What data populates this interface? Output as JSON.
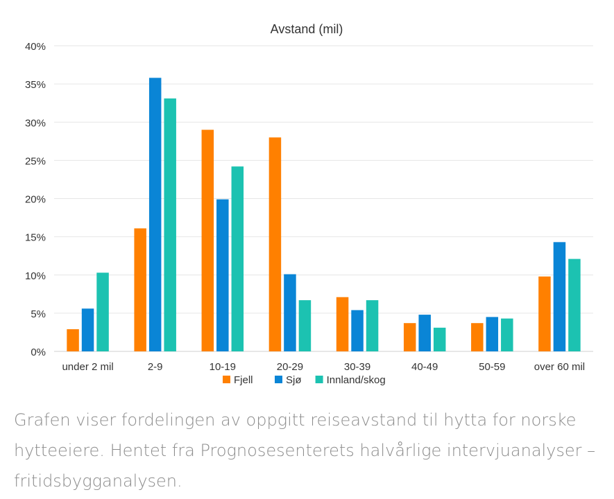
{
  "chart_data": {
    "type": "bar",
    "title": "Avstand (mil)",
    "xlabel": "",
    "ylabel": "",
    "categories": [
      "under 2 mil",
      "2-9",
      "10-19",
      "20-29",
      "30-39",
      "40-49",
      "50-59",
      "over 60 mil"
    ],
    "series": [
      {
        "name": "Fjell",
        "color": "#ff8000",
        "values": [
          0.029,
          0.161,
          0.29,
          0.28,
          0.071,
          0.037,
          0.037,
          0.098
        ]
      },
      {
        "name": "Sjø",
        "color": "#0a85d6",
        "values": [
          0.056,
          0.358,
          0.199,
          0.101,
          0.054,
          0.048,
          0.045,
          0.143
        ]
      },
      {
        "name": "Innland/skog",
        "color": "#1cc2b1",
        "values": [
          0.103,
          0.331,
          0.242,
          0.067,
          0.067,
          0.031,
          0.043,
          0.121
        ]
      }
    ],
    "ylim": [
      0,
      0.4
    ],
    "yticks": [
      0,
      0.05,
      0.1,
      0.15,
      0.2,
      0.25,
      0.3,
      0.35,
      0.4
    ],
    "ytick_labels": [
      "0%",
      "5%",
      "10%",
      "15%",
      "20%",
      "25%",
      "30%",
      "35%",
      "40%"
    ],
    "grid": true,
    "legend_position": "bottom"
  },
  "caption": "Grafen viser fordelingen av oppgitt reiseavstand til hytta for norske hytteeiere. Hentet fra Prognosesenterets halvårlige intervjuanalyser – fritidsbygganalysen."
}
